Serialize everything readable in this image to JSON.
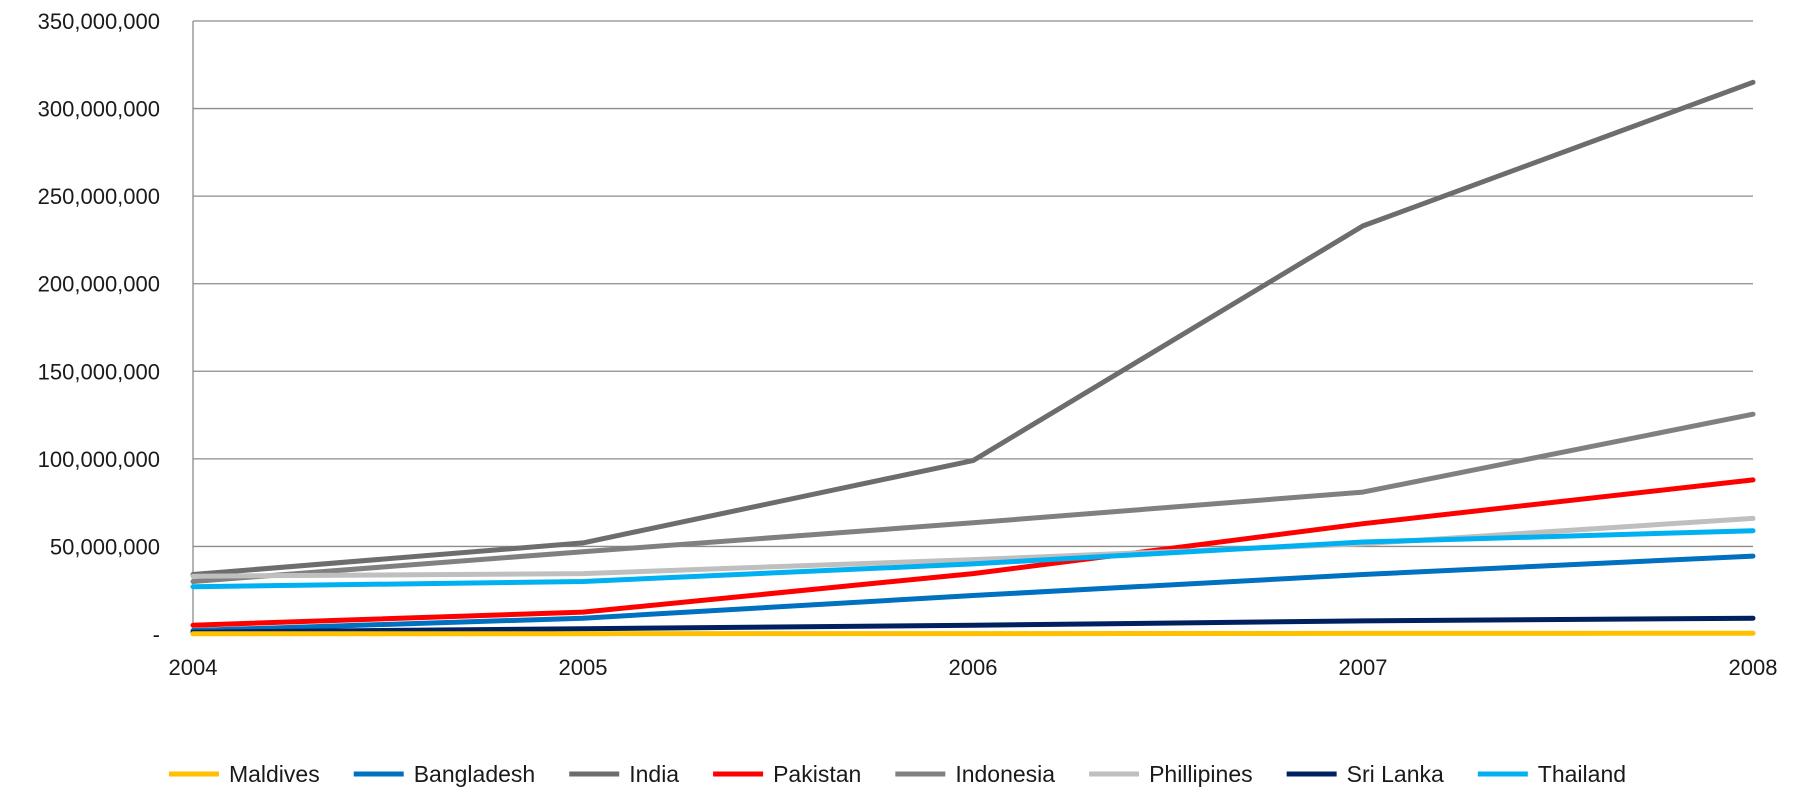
{
  "chart_data": {
    "type": "line",
    "title": "",
    "xlabel": "",
    "ylabel": "",
    "x": [
      "2004",
      "2005",
      "2006",
      "2007",
      "2008"
    ],
    "ylim": [
      0,
      350000000
    ],
    "yticks": [
      0,
      50000000,
      100000000,
      150000000,
      200000000,
      250000000,
      300000000,
      350000000
    ],
    "ytick_labels": [
      "-",
      "50,000,000",
      "100,000,000",
      "150,000,000",
      "200,000,000",
      "250,000,000",
      "300,000,000",
      "350,000,000"
    ],
    "grid": true,
    "legend_position": "bottom",
    "series": [
      {
        "name": "Maldives",
        "color": "#FFC000",
        "values": [
          100000,
          150000,
          250000,
          350000,
          450000
        ]
      },
      {
        "name": "Bangladesh",
        "color": "#0070C0",
        "values": [
          2000000,
          9000000,
          22000000,
          34000000,
          44500000
        ]
      },
      {
        "name": "India",
        "color": "#6D6D6D",
        "values": [
          34000000,
          52000000,
          99000000,
          233000000,
          315000000
        ]
      },
      {
        "name": "Pakistan",
        "color": "#FF0000",
        "values": [
          5000000,
          12500000,
          34500000,
          63000000,
          88000000
        ]
      },
      {
        "name": "Indonesia",
        "color": "#808080",
        "values": [
          30000000,
          47000000,
          63500000,
          81000000,
          125500000
        ]
      },
      {
        "name": "Phillipines",
        "color": "#BFBFBF",
        "values": [
          33000000,
          34500000,
          42500000,
          51500000,
          66000000
        ]
      },
      {
        "name": "Sri Lanka",
        "color": "#002060",
        "values": [
          1000000,
          3000000,
          5000000,
          7500000,
          9000000
        ]
      },
      {
        "name": "Thailand",
        "color": "#00B0F0",
        "values": [
          27000000,
          30000000,
          40000000,
          52500000,
          59000000
        ]
      }
    ]
  }
}
